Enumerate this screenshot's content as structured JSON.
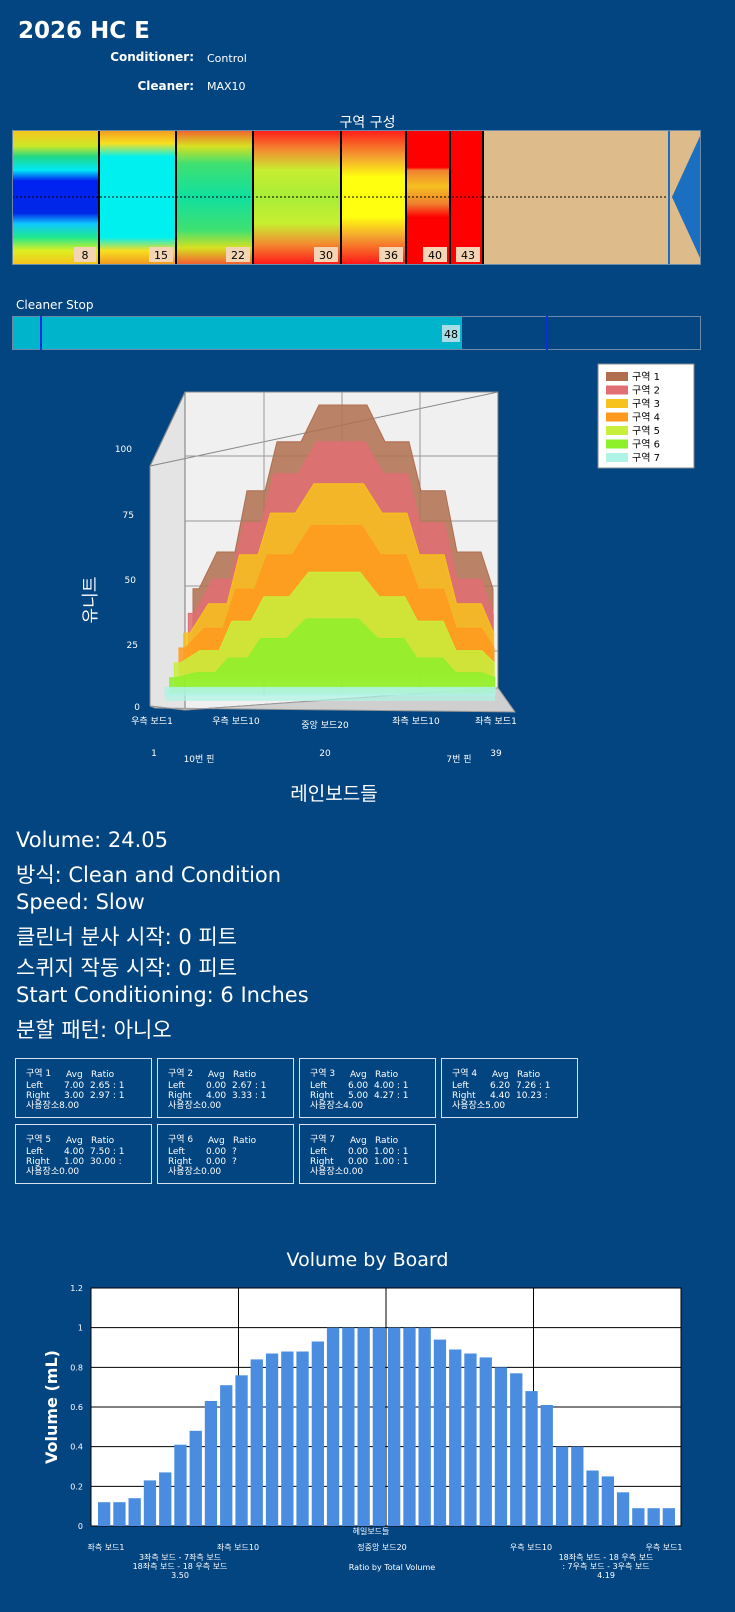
{
  "header": {
    "title": "2026 HC E",
    "conditioner_label": "Conditioner:",
    "conditioner_value": "Control",
    "cleaner_label": "Cleaner:",
    "cleaner_value": "MAX10"
  },
  "zone_config": {
    "title": "구역 구성",
    "markers": [
      "8",
      "15",
      "22",
      "30",
      "36",
      "40",
      "43"
    ]
  },
  "cleaner_stop": {
    "label": "Cleaner Stop",
    "value": "48"
  },
  "info": {
    "volume": "Volume: 24.05",
    "method": "방식: Clean and Condition",
    "speed": "Speed: Slow",
    "cleaner_spray": "클린너 분사 시작: 0 피트",
    "squeegee": "스퀴지 작동 시작: 0 피트",
    "start_conditioning": "Start Conditioning: 6 Inches",
    "split_pattern": "분할 패턴: 아니오"
  },
  "zone_table": {
    "avg_label": "Avg",
    "ratio_label": "Ratio",
    "left_label": "Left",
    "right_label": "Right",
    "zones": [
      {
        "name": "구역 1",
        "left_avg": "7.00",
        "left_ratio": "2.65 : 1",
        "right_avg": "3.00",
        "right_ratio": "2.97 : 1",
        "usage": "사용장소8.00"
      },
      {
        "name": "구역 2",
        "left_avg": "0.00",
        "left_ratio": "2.67 : 1",
        "right_avg": "4.00",
        "right_ratio": "3.33 : 1",
        "usage": "사용장소0.00"
      },
      {
        "name": "구역 3",
        "left_avg": "6.00",
        "left_ratio": "4.00 : 1",
        "right_avg": "5.00",
        "right_ratio": "4.27 : 1",
        "usage": "사용장소4.00"
      },
      {
        "name": "구역 4",
        "left_avg": "6.20",
        "left_ratio": "7.26 : 1",
        "right_avg": "4.40",
        "right_ratio": "10.23 :",
        "usage": "사용장소5.00"
      },
      {
        "name": "구역 5",
        "left_avg": "4.00",
        "left_ratio": "7.50 : 1",
        "right_avg": "1.00",
        "right_ratio": "30.00 :",
        "usage": "사용장소0.00"
      },
      {
        "name": "구역 6",
        "left_avg": "0.00",
        "left_ratio": "?",
        "right_avg": "0.00",
        "right_ratio": "?",
        "usage": "사용장소0.00"
      },
      {
        "name": "구역 7",
        "left_avg": "0.00",
        "left_ratio": "1.00 : 1",
        "right_avg": "0.00",
        "right_ratio": "1.00 : 1",
        "usage": "사용장소0.00"
      }
    ]
  },
  "colors": {
    "background": "#024581",
    "bar": "#4a8de0",
    "cleaner_fill": "#00b4cc",
    "lane_wood": "#debb8a"
  },
  "chart_data": [
    {
      "type": "area",
      "title": "",
      "ylabel": "유니트",
      "xlabel": "레인보드들",
      "y_ticks": [
        "0",
        "25",
        "50",
        "75",
        "100"
      ],
      "ylim": [
        0,
        100
      ],
      "x_tick_labels": [
        "우측 보드1",
        "우측 보드10",
        "중앙 보드20",
        "좌측 보드10",
        "좌측 보드1"
      ],
      "board_numbers": [
        "1",
        "20",
        "39"
      ],
      "pin_labels": [
        "10번 핀",
        "7번 핀"
      ],
      "legend": [
        "구역 1",
        "구역 2",
        "구역 3",
        "구역 4",
        "구역 5",
        "구역 6",
        "구역 7"
      ],
      "series_colors": [
        "#b06e4f",
        "#e06e72",
        "#f7c21c",
        "#ff9a1f",
        "#c8ef3c",
        "#8ef02a",
        "#aef3e6"
      ],
      "legend_position": "top-right",
      "series": [
        {
          "name": "구역 1",
          "peak": 100,
          "shoulder": 85,
          "mid": 65,
          "outer": 40,
          "edge": 25
        },
        {
          "name": "구역 2",
          "peak": 88,
          "shoulder": 75,
          "mid": 55,
          "outer": 32,
          "edge": 18
        },
        {
          "name": "구역 3",
          "peak": 74,
          "shoulder": 62,
          "mid": 45,
          "outer": 25,
          "edge": 13
        },
        {
          "name": "구역 4",
          "peak": 60,
          "shoulder": 48,
          "mid": 34,
          "outer": 18,
          "edge": 10
        },
        {
          "name": "구역 5",
          "peak": 44,
          "shoulder": 34,
          "mid": 24,
          "outer": 12,
          "edge": 7
        },
        {
          "name": "구역 6",
          "peak": 28,
          "shoulder": 20,
          "mid": 12,
          "outer": 6,
          "edge": 4
        },
        {
          "name": "구역 7",
          "peak": 3,
          "shoulder": 3,
          "mid": 3,
          "outer": 3,
          "edge": 3
        }
      ]
    },
    {
      "type": "bar",
      "title": "Volume by Board",
      "ylabel": "Volume (mL)",
      "xlabel": "헤일보드들",
      "ylim": [
        0,
        1.2
      ],
      "y_ticks": [
        "0",
        "0.2",
        "0.4",
        "0.6",
        "0.8",
        "1",
        "1.2"
      ],
      "grid": true,
      "x_tick_labels": [
        "좌측 보드1",
        "좌측 보드10",
        "정중앙 보드20",
        "우측 보드10",
        "우측 보드1"
      ],
      "ratio_label": "Ratio by Total Volume",
      "left_ratio_lines": [
        "3좌측 보드 - 7좌측 보드",
        "18좌측 보드 - 18 우측 보드",
        "3.50"
      ],
      "right_ratio_lines": [
        "18좌측 보드 - 18 우측 보드",
        ": 7우측 보드 - 3우측 보드",
        "4.19"
      ],
      "values": [
        0.12,
        0.12,
        0.14,
        0.23,
        0.27,
        0.41,
        0.48,
        0.63,
        0.71,
        0.76,
        0.84,
        0.87,
        0.88,
        0.88,
        0.93,
        1.0,
        1.0,
        1.0,
        1.0,
        1.0,
        1.0,
        1.0,
        0.94,
        0.89,
        0.87,
        0.85,
        0.8,
        0.77,
        0.68,
        0.61,
        0.4,
        0.4,
        0.28,
        0.25,
        0.17,
        0.09,
        0.09,
        0.09
      ]
    }
  ]
}
